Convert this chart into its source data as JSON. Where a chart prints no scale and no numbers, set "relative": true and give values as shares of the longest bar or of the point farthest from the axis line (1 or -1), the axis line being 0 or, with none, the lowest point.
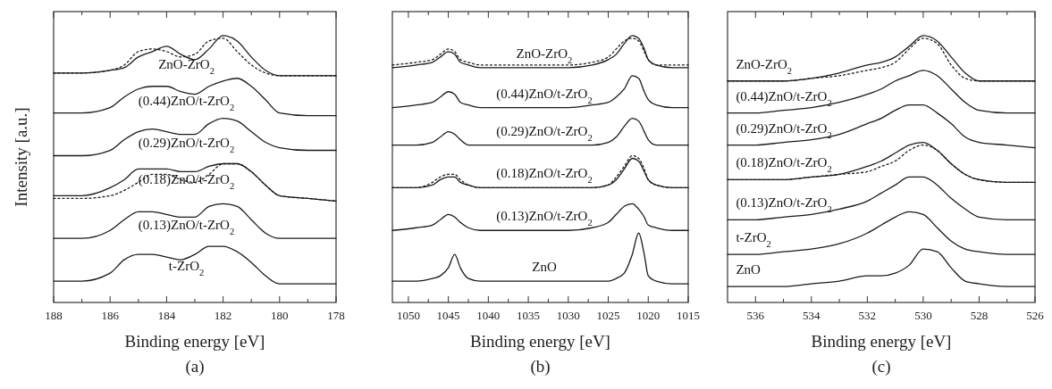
{
  "chart_data": [
    {
      "type": "line",
      "title": "(a)",
      "xlabel": "Binding energy [eV]",
      "ylabel": "Intensity [a.u.]",
      "relative": true,
      "xlim": [
        188,
        178
      ],
      "xticks": [
        188,
        {
          "value": 187,
          "label": null
        },
        186,
        {
          "value": 185,
          "label": null
        },
        184,
        {
          "value": 183,
          "label": null
        },
        182,
        {
          "value": 181,
          "label": null
        },
        180,
        {
          "value": 179,
          "label": null
        },
        178
      ],
      "x": [
        188,
        187,
        186,
        185.5,
        185,
        184.5,
        184,
        183.5,
        183,
        182.5,
        182,
        181.5,
        181,
        180.5,
        180,
        179,
        178
      ],
      "series": [
        {
          "name": "ZnO-ZrO$_{2}$",
          "color": "#1a1a1a",
          "values": [
            0.86,
            0.86,
            0.87,
            0.88,
            0.92,
            0.94,
            0.96,
            0.93,
            0.91,
            0.95,
            1.0,
            0.98,
            0.92,
            0.87,
            0.85,
            0.85,
            0.85
          ]
        },
        {
          "color": "#1a1a1a",
          "line_style": "dotted",
          "values": [
            0.86,
            0.86,
            0.87,
            0.89,
            0.94,
            0.95,
            0.94,
            0.92,
            0.93,
            0.98,
            0.99,
            0.94,
            0.89,
            0.86,
            0.85,
            0.85,
            0.85
          ]
        },
        {
          "name": "(0.44)ZnO/t-ZrO$_{2}$",
          "color": "#1a1a1a",
          "values": [
            0.71,
            0.71,
            0.73,
            0.77,
            0.8,
            0.81,
            0.81,
            0.79,
            0.78,
            0.81,
            0.83,
            0.84,
            0.81,
            0.76,
            0.71,
            0.7,
            0.7
          ]
        },
        {
          "name": "(0.29)ZnO/t-ZrO$_{2}$",
          "color": "#1a1a1a",
          "values": [
            0.55,
            0.55,
            0.57,
            0.61,
            0.64,
            0.65,
            0.64,
            0.63,
            0.63,
            0.67,
            0.69,
            0.68,
            0.64,
            0.6,
            0.58,
            0.57,
            0.57
          ]
        },
        {
          "name": "(0.18)ZnO/t-ZrO$_{2}$",
          "color": "#1a1a1a",
          "values": [
            0.4,
            0.4,
            0.43,
            0.46,
            0.5,
            0.5,
            0.5,
            0.49,
            0.49,
            0.51,
            0.52,
            0.52,
            0.49,
            0.44,
            0.4,
            0.39,
            0.38
          ]
        },
        {
          "color": "#1a1a1a",
          "line_style": "dotted",
          "values": [
            0.39,
            0.39,
            0.4,
            0.42,
            0.45,
            0.48,
            0.48,
            0.46,
            0.45,
            0.48,
            0.52,
            0.52,
            0.49,
            0.44,
            0.4,
            0.39,
            0.38
          ]
        },
        {
          "name": "(0.13)ZnO/t-ZrO$_{2}$",
          "color": "#1a1a1a",
          "values": [
            0.24,
            0.24,
            0.27,
            0.31,
            0.34,
            0.34,
            0.33,
            0.32,
            0.32,
            0.36,
            0.37,
            0.36,
            0.31,
            0.26,
            0.24,
            0.24,
            0.24
          ]
        },
        {
          "name": "t-ZrO$_{2}$",
          "color": "#1a1a1a",
          "values": [
            0.08,
            0.08,
            0.11,
            0.16,
            0.18,
            0.18,
            0.17,
            0.16,
            0.18,
            0.21,
            0.21,
            0.19,
            0.15,
            0.1,
            0.07,
            0.07,
            0.07
          ]
        }
      ]
    },
    {
      "type": "line",
      "title": "(b)",
      "xlabel": "Binding energy [eV]",
      "relative": true,
      "xlim": [
        1052,
        1015
      ],
      "xticks": [
        1050,
        {
          "value": 1047.5,
          "label": null
        },
        1045,
        {
          "value": 1042.5,
          "label": null
        },
        1040,
        {
          "value": 1037.5,
          "label": null
        },
        1035,
        {
          "value": 1032.5,
          "label": null
        },
        1030,
        {
          "value": 1027.5,
          "label": null
        },
        1025,
        {
          "value": 1022.5,
          "label": null
        },
        1020,
        {
          "value": 1017.5,
          "label": null
        },
        1015
      ],
      "x": [
        1052,
        1049,
        1047,
        1046,
        1045,
        1044.2,
        1043.5,
        1042.5,
        1041,
        1038,
        1034,
        1030,
        1027,
        1025,
        1024,
        1023,
        1022,
        1021.2,
        1020.5,
        1020,
        1019,
        1017,
        1015
      ],
      "series": [
        {
          "name": "ZnO-ZrO$_{2}$",
          "color": "#1a1a1a",
          "values": [
            0.88,
            0.89,
            0.9,
            0.92,
            0.94,
            0.93,
            0.9,
            0.89,
            0.88,
            0.88,
            0.88,
            0.88,
            0.89,
            0.91,
            0.93,
            0.97,
            1.0,
            0.99,
            0.95,
            0.91,
            0.89,
            0.88,
            0.88
          ]
        },
        {
          "color": "#1a1a1a",
          "line_style": "dotted",
          "values": [
            0.89,
            0.9,
            0.91,
            0.93,
            0.95,
            0.94,
            0.91,
            0.9,
            0.89,
            0.89,
            0.89,
            0.89,
            0.9,
            0.92,
            0.95,
            0.98,
            0.99,
            0.98,
            0.94,
            0.91,
            0.89,
            0.89,
            0.89
          ]
        },
        {
          "name": "(0.44)ZnO/t-ZrO$_{2}$",
          "color": "#1a1a1a",
          "values": [
            0.73,
            0.74,
            0.75,
            0.77,
            0.79,
            0.78,
            0.75,
            0.74,
            0.73,
            0.73,
            0.73,
            0.73,
            0.74,
            0.75,
            0.77,
            0.8,
            0.85,
            0.84,
            0.79,
            0.76,
            0.74,
            0.73,
            0.73
          ]
        },
        {
          "name": "(0.29)ZnO/t-ZrO$_{2}$",
          "color": "#1a1a1a",
          "values": [
            0.59,
            0.59,
            0.6,
            0.62,
            0.64,
            0.63,
            0.61,
            0.59,
            0.59,
            0.59,
            0.59,
            0.59,
            0.59,
            0.6,
            0.62,
            0.66,
            0.69,
            0.68,
            0.64,
            0.61,
            0.59,
            0.59,
            0.59
          ]
        },
        {
          "name": "(0.18)ZnO/t-ZrO$_{2}$",
          "color": "#1a1a1a",
          "values": [
            0.43,
            0.43,
            0.44,
            0.46,
            0.47,
            0.47,
            0.45,
            0.44,
            0.43,
            0.43,
            0.43,
            0.43,
            0.43,
            0.44,
            0.46,
            0.5,
            0.54,
            0.53,
            0.49,
            0.46,
            0.44,
            0.43,
            0.43
          ]
        },
        {
          "color": "#1a1a1a",
          "line_style": "dotted",
          "values": [
            0.43,
            0.43,
            0.45,
            0.47,
            0.48,
            0.48,
            0.46,
            0.44,
            0.43,
            0.43,
            0.43,
            0.43,
            0.43,
            0.44,
            0.47,
            0.51,
            0.55,
            0.54,
            0.5,
            0.46,
            0.44,
            0.43,
            0.43
          ]
        },
        {
          "name": "(0.13)ZnO/t-ZrO$_{2}$",
          "color": "#1a1a1a",
          "values": [
            0.27,
            0.28,
            0.29,
            0.31,
            0.33,
            0.32,
            0.3,
            0.28,
            0.27,
            0.27,
            0.27,
            0.27,
            0.28,
            0.3,
            0.33,
            0.36,
            0.37,
            0.35,
            0.32,
            0.29,
            0.28,
            0.27,
            0.27
          ]
        },
        {
          "name": "ZnO",
          "color": "#1a1a1a",
          "values": [
            0.08,
            0.08,
            0.09,
            0.1,
            0.13,
            0.18,
            0.13,
            0.09,
            0.08,
            0.08,
            0.08,
            0.08,
            0.08,
            0.08,
            0.09,
            0.11,
            0.18,
            0.26,
            0.18,
            0.1,
            0.08,
            0.07,
            0.07
          ]
        }
      ]
    },
    {
      "type": "line",
      "title": "(c)",
      "xlabel": "Binding energy [eV]",
      "relative": true,
      "xlim": [
        537,
        526
      ],
      "xticks": [
        536,
        {
          "value": 535,
          "label": null
        },
        534,
        {
          "value": 533,
          "label": null
        },
        532,
        {
          "value": 531,
          "label": null
        },
        530,
        {
          "value": 529,
          "label": null
        },
        528,
        {
          "value": 527,
          "label": null
        },
        526
      ],
      "x": [
        537,
        536,
        535,
        534,
        533,
        532,
        531.5,
        531,
        530.5,
        530,
        529.5,
        529,
        528.5,
        528,
        527,
        526
      ],
      "series": [
        {
          "name": "ZnO-ZrO$_{2}$",
          "color": "#1a1a1a",
          "values": [
            0.83,
            0.83,
            0.83,
            0.84,
            0.86,
            0.89,
            0.9,
            0.92,
            0.96,
            1.0,
            0.98,
            0.92,
            0.86,
            0.83,
            0.83,
            0.83
          ]
        },
        {
          "color": "#1a1a1a",
          "line_style": "dotted",
          "values": [
            0.83,
            0.83,
            0.83,
            0.84,
            0.85,
            0.87,
            0.88,
            0.9,
            0.95,
            0.99,
            0.97,
            0.89,
            0.84,
            0.83,
            0.83,
            0.83
          ]
        },
        {
          "name": "(0.44)ZnO/t-ZrO$_{2}$",
          "color": "#1a1a1a",
          "values": [
            0.71,
            0.71,
            0.72,
            0.73,
            0.75,
            0.78,
            0.8,
            0.83,
            0.85,
            0.87,
            0.85,
            0.8,
            0.75,
            0.72,
            0.71,
            0.71
          ]
        },
        {
          "name": "(0.29)ZnO/t-ZrO$_{2}$",
          "color": "#1a1a1a",
          "values": [
            0.59,
            0.59,
            0.6,
            0.61,
            0.63,
            0.67,
            0.69,
            0.72,
            0.74,
            0.74,
            0.71,
            0.67,
            0.62,
            0.6,
            0.59,
            0.58
          ]
        },
        {
          "name": "(0.18)ZnO/t-ZrO$_{2}$",
          "color": "#1a1a1a",
          "values": [
            0.46,
            0.46,
            0.46,
            0.47,
            0.48,
            0.51,
            0.53,
            0.56,
            0.59,
            0.6,
            0.57,
            0.52,
            0.48,
            0.46,
            0.45,
            0.45
          ]
        },
        {
          "color": "#1a1a1a",
          "line_style": "dotted",
          "values": [
            0.46,
            0.46,
            0.46,
            0.47,
            0.48,
            0.49,
            0.51,
            0.53,
            0.57,
            0.59,
            0.57,
            0.52,
            0.48,
            0.46,
            0.45,
            0.45
          ]
        },
        {
          "name": "(0.13)ZnO/t-ZrO$_{2}$",
          "color": "#1a1a1a",
          "values": [
            0.31,
            0.31,
            0.32,
            0.33,
            0.35,
            0.38,
            0.41,
            0.44,
            0.47,
            0.47,
            0.44,
            0.39,
            0.35,
            0.32,
            0.31,
            0.31
          ]
        },
        {
          "name": "t-ZrO$_{2}$",
          "color": "#1a1a1a",
          "values": [
            0.18,
            0.18,
            0.19,
            0.2,
            0.22,
            0.26,
            0.29,
            0.32,
            0.34,
            0.33,
            0.28,
            0.23,
            0.2,
            0.19,
            0.18,
            0.18
          ]
        },
        {
          "name": "ZnO",
          "color": "#1a1a1a",
          "values": [
            0.06,
            0.06,
            0.06,
            0.07,
            0.08,
            0.1,
            0.1,
            0.11,
            0.14,
            0.2,
            0.19,
            0.13,
            0.08,
            0.07,
            0.06,
            0.06
          ]
        }
      ]
    }
  ]
}
